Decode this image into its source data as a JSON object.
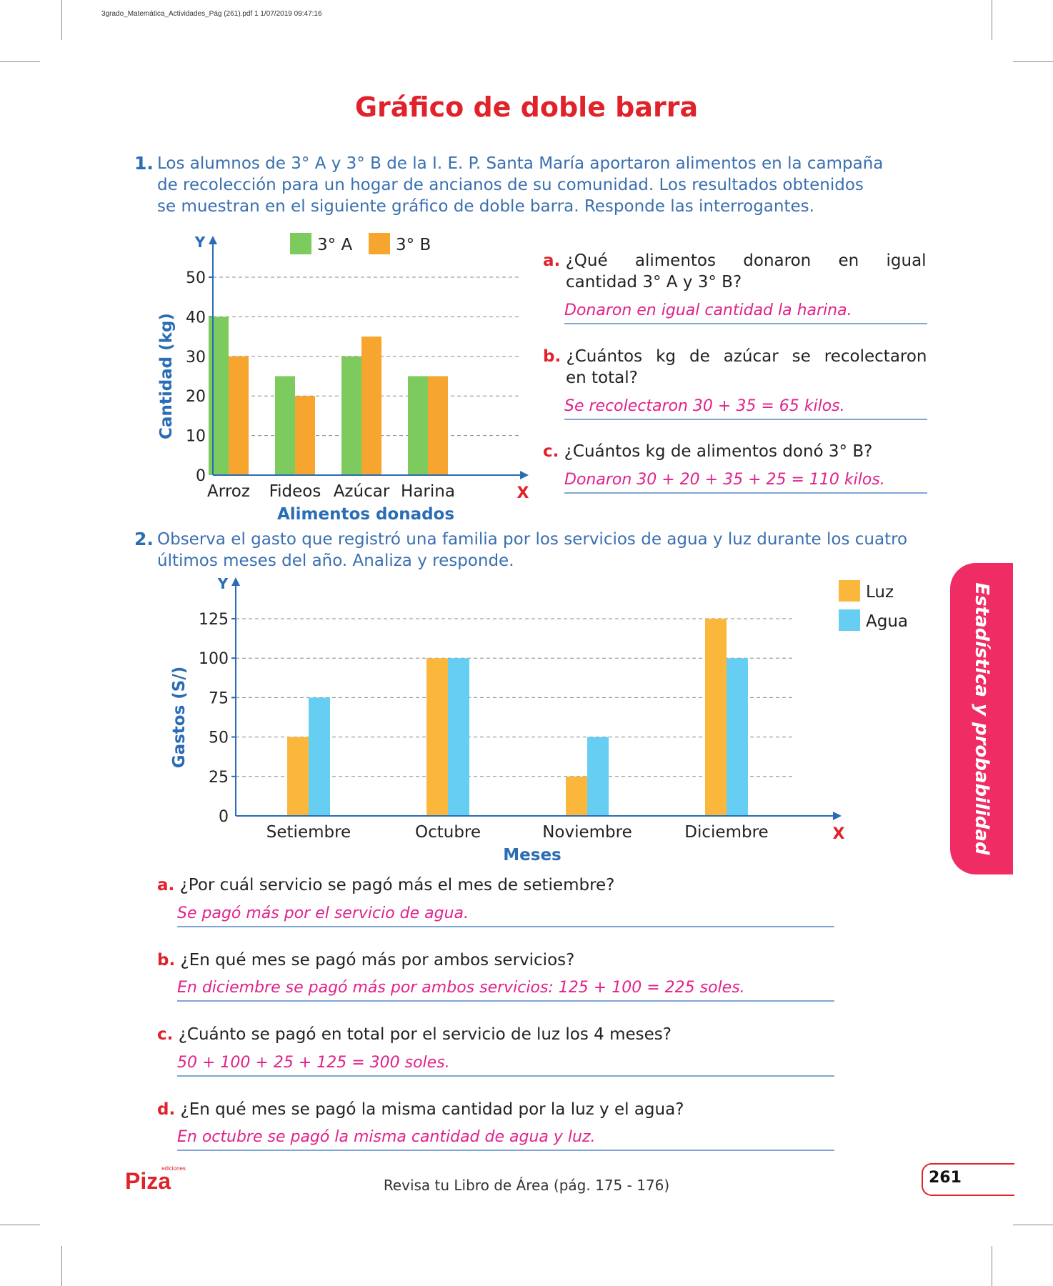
{
  "header": {
    "file_line": "3grado_Matemática_Actividades_Pág (261).pdf   1   1/07/2019   09:47:16"
  },
  "title": "Gráfico de doble barra",
  "q1": {
    "number": "1.",
    "lines": [
      "Los alumnos de 3° A y 3° B de la I. E. P. Santa María aportaron alimentos en la campaña",
      "de recolección para un hogar de ancianos de su comunidad. Los resultados obtenidos",
      "se muestran en el siguiente gráfico de doble barra. Responde las interrogantes."
    ],
    "a": {
      "letter": "a.",
      "q1": "¿Qué alimentos donaron en igual",
      "q2": "cantidad 3° A y 3° B?",
      "answer": "Donaron en igual cantidad la harina."
    },
    "b": {
      "letter": "b.",
      "q1": "¿Cuántos kg de azúcar se recolectaron",
      "q2": "en total?",
      "answer": "Se recolectaron 30 + 35 = 65 kilos."
    },
    "c": {
      "letter": "c.",
      "q1": "¿Cuántos kg de alimentos donó 3° B?",
      "answer": "Donaron 30 + 20 + 35 + 25 = 110 kilos."
    }
  },
  "q2": {
    "number": "2.",
    "lines": [
      "Observa el gasto que registró una familia por los servicios de agua y luz durante los cuatro",
      "últimos meses del año. Analiza y responde."
    ],
    "a": {
      "letter": "a.",
      "question": "¿Por cuál servicio se pagó más el mes de setiembre?",
      "answer": "Se pagó más por el servicio de agua."
    },
    "b": {
      "letter": "b.",
      "question": "¿En qué mes se pagó más por ambos servicios?",
      "answer": "En diciembre se pagó más por ambos servicios: 125 + 100 = 225 soles."
    },
    "c": {
      "letter": "c.",
      "question": "¿Cuánto se pagó en total por el servicio de luz los 4 meses?",
      "answer": "50 + 100 + 25 + 125 = 300 soles."
    },
    "d": {
      "letter": "d.",
      "question": "¿En qué mes se pagó la misma cantidad por la luz y el agua?",
      "answer": "En octubre se pagó la misma cantidad de agua y luz."
    }
  },
  "chart_data": [
    {
      "type": "bar",
      "categories": [
        "Arroz",
        "Fideos",
        "Azúcar",
        "Harina"
      ],
      "series": [
        {
          "name": "3° A",
          "values": [
            40,
            25,
            30,
            25
          ],
          "color": "#7dcb5e"
        },
        {
          "name": "3° B",
          "values": [
            30,
            20,
            35,
            25
          ],
          "color": "#f6a52f"
        }
      ],
      "xlabel": "Alimentos donados",
      "ylabel": "Cantidad (kg)",
      "x_axis_letter": "X",
      "y_axis_letter": "Y",
      "yticks": [
        0,
        10,
        20,
        30,
        40,
        50
      ],
      "ylim": [
        0,
        50
      ],
      "grid": "dashed",
      "legend": "top"
    },
    {
      "type": "bar",
      "categories": [
        "Setiembre",
        "Octubre",
        "Noviembre",
        "Diciembre"
      ],
      "series": [
        {
          "name": "Luz",
          "values": [
            50,
            100,
            25,
            125
          ],
          "color": "#fbb73c"
        },
        {
          "name": "Agua",
          "values": [
            75,
            100,
            50,
            100
          ],
          "color": "#66cdf3"
        }
      ],
      "xlabel": "Meses",
      "ylabel": "Gastos (S/)",
      "x_axis_letter": "X",
      "y_axis_letter": "Y",
      "yticks": [
        0,
        25,
        50,
        75,
        100,
        125
      ],
      "ylim": [
        0,
        125
      ],
      "grid": "dashed",
      "legend": "top-right"
    }
  ],
  "sidebar": {
    "label": "Estadística y probabilidad"
  },
  "footer": {
    "note": "Revisa tu Libro de Área (pág. 175 - 176)",
    "page": "261",
    "logo_text": "Piza",
    "logo_small": "ediciones"
  }
}
